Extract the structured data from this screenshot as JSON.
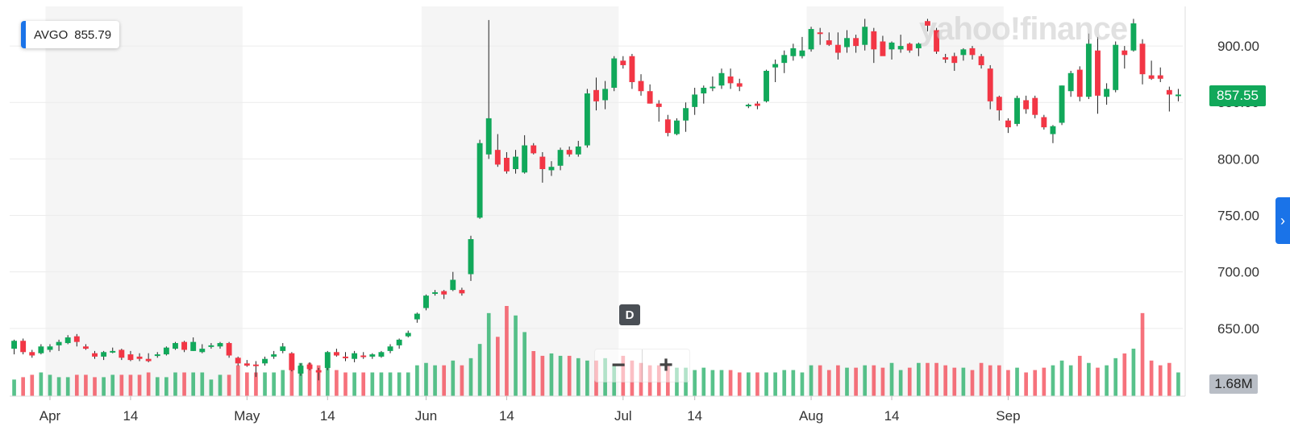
{
  "legend": {
    "symbol": "AVGO",
    "value": "855.79"
  },
  "interval_badge": "D",
  "zoom": {
    "minus": "−",
    "plus": "+"
  },
  "current_price_label": "857.55",
  "current_volume_label": "1.68M",
  "watermark": "yahoo!finance",
  "colors": {
    "up": "#11a85a",
    "down": "#f23645",
    "accent": "#1a73e8"
  },
  "chart_data": {
    "type": "candlestick",
    "ylim": [
      590,
      935
    ],
    "y_ticks": [
      "650.00",
      "700.00",
      "750.00",
      "800.00",
      "850.00",
      "900.00"
    ],
    "x_tick_labels": [
      "Apr",
      "14",
      "May",
      "14",
      "Jun",
      "14",
      "Jul",
      "14",
      "Aug",
      "14",
      "Sep"
    ],
    "x_tick_dates": [
      "2021-04-01",
      "2021-04-14",
      "2021-05-03",
      "2021-05-14",
      "2021-06-01",
      "2021-06-14",
      "2021-07-01",
      "2021-07-14",
      "2021-08-02",
      "2021-08-14",
      "2021-09-01"
    ],
    "shaded_months": [
      [
        "2021-04-01",
        "2021-04-30"
      ],
      [
        "2021-06-01",
        "2021-06-30"
      ],
      [
        "2021-08-01",
        "2021-08-31"
      ]
    ],
    "volume_max_label": "1.68M",
    "candles": [
      [
        "2021-03-26",
        632,
        640,
        627,
        639,
        0.7
      ],
      [
        "2021-03-29",
        639,
        641,
        627,
        629,
        0.8
      ],
      [
        "2021-03-30",
        629,
        631,
        624,
        626,
        0.9
      ],
      [
        "2021-03-31",
        628,
        636,
        627,
        634,
        1.0
      ],
      [
        "2021-04-01",
        631,
        636,
        629,
        634,
        0.9
      ],
      [
        "2021-04-02",
        635,
        640,
        630,
        638,
        0.8
      ],
      [
        "2021-04-05",
        637,
        644,
        636,
        642,
        0.8
      ],
      [
        "2021-04-06",
        643,
        645,
        634,
        638,
        0.9
      ],
      [
        "2021-04-07",
        634,
        636,
        631,
        632,
        0.9
      ],
      [
        "2021-04-08",
        628,
        630,
        623,
        625,
        0.8
      ],
      [
        "2021-04-09",
        625,
        630,
        622,
        629,
        0.8
      ],
      [
        "2021-04-12",
        630,
        633,
        628,
        630,
        0.9
      ],
      [
        "2021-04-13",
        631,
        632,
        622,
        624,
        0.9
      ],
      [
        "2021-04-14",
        627,
        630,
        621,
        622,
        0.9
      ],
      [
        "2021-04-15",
        625,
        628,
        621,
        623,
        0.9
      ],
      [
        "2021-04-16",
        623,
        628,
        620,
        621,
        1.0
      ],
      [
        "2021-04-19",
        626,
        629,
        624,
        627,
        0.8
      ],
      [
        "2021-04-20",
        627,
        634,
        626,
        633,
        0.8
      ],
      [
        "2021-04-21",
        632,
        638,
        631,
        637,
        1.0
      ],
      [
        "2021-04-22",
        638,
        639,
        629,
        631,
        1.0
      ],
      [
        "2021-04-23",
        630,
        642,
        630,
        638,
        1.0
      ],
      [
        "2021-04-26",
        629,
        636,
        628,
        632,
        1.0
      ],
      [
        "2021-04-27",
        634,
        637,
        632,
        635,
        0.7
      ],
      [
        "2021-04-28",
        634,
        638,
        632,
        637,
        0.9
      ],
      [
        "2021-04-29",
        637,
        638,
        624,
        626,
        0.9
      ],
      [
        "2021-04-30",
        624,
        625,
        617,
        619,
        1.3
      ],
      [
        "2021-05-03",
        619,
        622,
        616,
        617,
        1.0
      ],
      [
        "2021-05-04",
        618,
        621,
        607,
        617,
        1.0
      ],
      [
        "2021-05-05",
        619,
        625,
        617,
        623,
        1.0
      ],
      [
        "2021-05-06",
        625,
        630,
        623,
        627,
        1.0
      ],
      [
        "2021-05-07",
        630,
        637,
        628,
        634,
        1.1
      ],
      [
        "2021-05-10",
        628,
        629,
        612,
        613,
        1.6
      ],
      [
        "2021-05-11",
        610,
        619,
        608,
        617,
        1.4
      ],
      [
        "2021-05-12",
        618,
        620,
        613,
        614,
        1.4
      ],
      [
        "2021-05-13",
        613,
        615,
        604,
        611,
        1.3
      ],
      [
        "2021-05-14",
        615,
        630,
        613,
        629,
        1.4
      ],
      [
        "2021-05-17",
        629,
        632,
        625,
        626,
        1.1
      ],
      [
        "2021-05-18",
        625,
        629,
        621,
        624,
        1.0
      ],
      [
        "2021-05-19",
        623,
        630,
        620,
        628,
        1.0
      ],
      [
        "2021-05-20",
        626,
        629,
        623,
        625,
        1.0
      ],
      [
        "2021-05-21",
        625,
        628,
        623,
        627,
        1.0
      ],
      [
        "2021-05-24",
        625,
        630,
        624,
        629,
        1.0
      ],
      [
        "2021-05-25",
        630,
        636,
        628,
        634,
        1.0
      ],
      [
        "2021-05-26",
        635,
        641,
        632,
        640,
        1.0
      ],
      [
        "2021-05-27",
        643,
        648,
        642,
        646,
        1.0
      ],
      [
        "2021-05-28",
        658,
        664,
        655,
        663,
        1.3
      ],
      [
        "2021-06-01",
        668,
        680,
        666,
        679,
        1.4
      ],
      [
        "2021-06-02",
        681,
        684,
        679,
        682,
        1.3
      ],
      [
        "2021-06-03",
        683,
        684,
        676,
        680,
        1.3
      ],
      [
        "2021-06-04",
        684,
        700,
        683,
        693,
        1.5
      ],
      [
        "2021-06-07",
        684,
        686,
        679,
        681,
        1.3
      ],
      [
        "2021-06-08",
        698,
        732,
        692,
        729,
        1.6
      ],
      [
        "2021-06-09",
        748,
        817,
        747,
        814,
        2.2
      ],
      [
        "2021-06-10",
        804,
        923,
        800,
        836,
        3.5
      ],
      [
        "2021-06-11",
        808,
        822,
        793,
        795,
        2.5
      ],
      [
        "2021-06-14",
        801,
        806,
        787,
        789,
        3.8
      ],
      [
        "2021-06-15",
        791,
        808,
        787,
        802,
        3.4
      ],
      [
        "2021-06-16",
        788,
        821,
        787,
        812,
        2.7
      ],
      [
        "2021-06-17",
        812,
        814,
        804,
        805,
        1.9
      ],
      [
        "2021-06-18",
        802,
        806,
        779,
        791,
        1.7
      ],
      [
        "2021-06-21",
        790,
        798,
        785,
        793,
        1.8
      ],
      [
        "2021-06-22",
        794,
        810,
        790,
        808,
        1.7
      ],
      [
        "2021-06-23",
        808,
        811,
        802,
        804,
        1.7
      ],
      [
        "2021-06-24",
        804,
        816,
        802,
        811,
        1.6
      ],
      [
        "2021-06-25",
        812,
        862,
        810,
        858,
        1.5
      ],
      [
        "2021-06-28",
        861,
        872,
        843,
        851,
        1.5
      ],
      [
        "2021-06-29",
        852,
        869,
        844,
        862,
        1.6
      ],
      [
        "2021-06-30",
        863,
        891,
        860,
        889,
        1.3
      ],
      [
        "2021-07-01",
        887,
        891,
        880,
        883,
        1.7
      ],
      [
        "2021-07-02",
        891,
        893,
        862,
        868,
        1.5
      ],
      [
        "2021-07-06",
        869,
        875,
        856,
        860,
        1.4
      ],
      [
        "2021-07-07",
        860,
        866,
        849,
        849,
        1.3
      ],
      [
        "2021-07-08",
        849,
        852,
        833,
        846,
        1.3
      ],
      [
        "2021-07-09",
        835,
        839,
        820,
        823,
        1.3
      ],
      [
        "2021-07-12",
        822,
        836,
        821,
        834,
        1.2
      ],
      [
        "2021-07-13",
        834,
        850,
        824,
        845,
        1.2
      ],
      [
        "2021-07-14",
        846,
        863,
        839,
        857,
        1.1
      ],
      [
        "2021-07-15",
        858,
        865,
        849,
        863,
        1.2
      ],
      [
        "2021-07-16",
        864,
        873,
        860,
        864,
        1.1
      ],
      [
        "2021-07-19",
        865,
        880,
        862,
        876,
        1.1
      ],
      [
        "2021-07-20",
        873,
        880,
        862,
        867,
        1.1
      ],
      [
        "2021-07-21",
        867,
        871,
        860,
        864,
        1.0
      ],
      [
        "2021-07-22",
        848,
        849,
        845,
        848,
        1.0
      ],
      [
        "2021-07-23",
        849,
        851,
        844,
        847,
        1.0
      ],
      [
        "2021-07-26",
        851,
        879,
        850,
        878,
        1.0
      ],
      [
        "2021-07-27",
        881,
        888,
        868,
        884,
        1.0
      ],
      [
        "2021-07-28",
        885,
        896,
        876,
        892,
        1.1
      ],
      [
        "2021-07-29",
        891,
        902,
        887,
        898,
        1.1
      ],
      [
        "2021-07-30",
        891,
        908,
        889,
        896,
        1.0
      ],
      [
        "2021-08-02",
        897,
        917,
        895,
        915,
        1.3
      ],
      [
        "2021-08-03",
        912,
        916,
        901,
        911,
        1.3
      ],
      [
        "2021-08-04",
        905,
        912,
        900,
        901,
        1.1
      ],
      [
        "2021-08-05",
        901,
        912,
        888,
        894,
        1.3
      ],
      [
        "2021-08-06",
        899,
        914,
        894,
        907,
        1.2
      ],
      [
        "2021-08-09",
        907,
        910,
        894,
        900,
        1.2
      ],
      [
        "2021-08-10",
        901,
        924,
        896,
        917,
        1.3
      ],
      [
        "2021-08-11",
        913,
        916,
        885,
        897,
        1.3
      ],
      [
        "2021-08-12",
        904,
        909,
        893,
        891,
        1.2
      ],
      [
        "2021-08-13",
        897,
        904,
        888,
        903,
        1.4
      ],
      [
        "2021-08-16",
        897,
        910,
        894,
        900,
        1.1
      ],
      [
        "2021-08-17",
        902,
        903,
        894,
        896,
        1.2
      ],
      [
        "2021-08-18",
        898,
        903,
        891,
        902,
        1.4
      ],
      [
        "2021-08-19",
        922,
        924,
        913,
        918,
        1.4
      ],
      [
        "2021-08-20",
        914,
        916,
        893,
        895,
        1.4
      ],
      [
        "2021-08-23",
        890,
        893,
        885,
        888,
        1.3
      ],
      [
        "2021-08-24",
        891,
        894,
        878,
        885,
        1.2
      ],
      [
        "2021-08-25",
        892,
        898,
        887,
        897,
        1.2
      ],
      [
        "2021-08-26",
        898,
        900,
        888,
        892,
        1.1
      ],
      [
        "2021-08-27",
        891,
        893,
        880,
        883,
        1.4
      ],
      [
        "2021-08-30",
        880,
        883,
        844,
        851,
        1.3
      ],
      [
        "2021-08-31",
        855,
        856,
        834,
        843,
        1.3
      ],
      [
        "2021-09-01",
        834,
        836,
        823,
        828,
        1.1
      ],
      [
        "2021-09-02",
        831,
        856,
        829,
        854,
        1.2
      ],
      [
        "2021-09-03",
        852,
        856,
        840,
        844,
        1.0
      ],
      [
        "2021-09-07",
        854,
        856,
        836,
        839,
        1.1
      ],
      [
        "2021-09-08",
        837,
        839,
        826,
        828,
        1.2
      ],
      [
        "2021-09-09",
        822,
        830,
        814,
        829,
        1.3
      ],
      [
        "2021-09-10",
        832,
        865,
        830,
        865,
        1.5
      ],
      [
        "2021-09-13",
        860,
        878,
        855,
        876,
        1.3
      ],
      [
        "2021-09-14",
        879,
        882,
        851,
        855,
        1.7
      ],
      [
        "2021-09-15",
        855,
        911,
        853,
        902,
        1.4
      ],
      [
        "2021-09-16",
        896,
        908,
        840,
        856,
        1.2
      ],
      [
        "2021-09-17",
        855,
        867,
        848,
        862,
        1.3
      ],
      [
        "2021-09-20",
        861,
        904,
        859,
        901,
        1.6
      ],
      [
        "2021-09-21",
        896,
        900,
        880,
        892,
        1.8
      ],
      [
        "2021-09-22",
        896,
        924,
        895,
        920,
        2.0
      ],
      [
        "2021-09-23",
        902,
        906,
        866,
        875,
        3.5
      ],
      [
        "2021-09-24",
        874,
        887,
        870,
        871,
        1.5
      ],
      [
        "2021-09-27",
        874,
        881,
        868,
        871,
        1.3
      ],
      [
        "2021-09-28",
        861,
        864,
        842,
        857,
        1.4
      ],
      [
        "2021-09-29",
        856,
        862,
        851,
        857,
        1.0
      ]
    ]
  }
}
